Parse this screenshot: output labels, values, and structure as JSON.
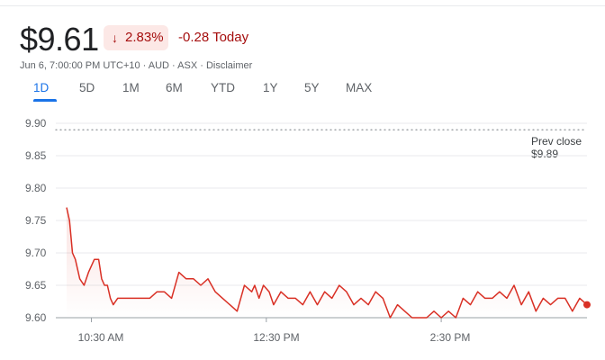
{
  "quote": {
    "price": "$9.61",
    "change_percent": "2.83%",
    "change_arrow_icon": "arrow-down-icon",
    "change_today": "-0.28 Today",
    "meta": "Jun 6, 7:00:00 PM UTC+10 · AUD · ASX · Disclaimer"
  },
  "ranges": [
    "1D",
    "5D",
    "1M",
    "6M",
    "YTD",
    "1Y",
    "5Y",
    "MAX"
  ],
  "selected_range": "1D",
  "colors": {
    "down": "#d93025",
    "down_text": "#a50e0e",
    "badge_bg": "#fce8e6",
    "accent": "#1a73e8"
  },
  "previous_close": {
    "label": "Prev close",
    "value": "$9.89"
  },
  "chart_data": {
    "type": "line",
    "y_ticks": [
      "9.90",
      "9.85",
      "9.80",
      "9.75",
      "9.70",
      "9.65",
      "9.60"
    ],
    "x_ticks": [
      "10:30 AM",
      "12:30 PM",
      "2:30 PM"
    ],
    "ylim": [
      9.6,
      9.9
    ],
    "prev_close": 9.89,
    "grid": true,
    "series": [
      {
        "x": [
          "10:13",
          "10:15",
          "10:17",
          "10:19",
          "10:22",
          "10:25",
          "10:28",
          "10:32",
          "10:35",
          "10:37",
          "10:39",
          "10:41",
          "10:43",
          "10:45",
          "10:48",
          "10:52",
          "10:55",
          "11:00",
          "11:05",
          "11:10",
          "11:15",
          "11:20",
          "11:25",
          "11:30",
          "11:35",
          "11:40",
          "11:45",
          "11:50",
          "11:55",
          "12:00",
          "12:05",
          "12:10",
          "12:15",
          "12:20",
          "12:22",
          "12:25",
          "12:28",
          "12:32",
          "12:35",
          "12:40",
          "12:45",
          "12:50",
          "12:55",
          "13:00",
          "13:05",
          "13:10",
          "13:15",
          "13:20",
          "13:25",
          "13:30",
          "13:35",
          "13:40",
          "13:45",
          "13:50",
          "13:55",
          "14:00",
          "14:05",
          "14:10",
          "14:15",
          "14:20",
          "14:25",
          "14:30",
          "14:35",
          "14:40",
          "14:45",
          "14:50",
          "14:55",
          "15:00",
          "15:05",
          "15:10",
          "15:15",
          "15:20",
          "15:25",
          "15:30",
          "15:35",
          "15:40",
          "15:45",
          "15:50",
          "15:55",
          "16:00",
          "16:05",
          "16:10"
        ],
        "y": [
          9.77,
          9.75,
          9.7,
          9.69,
          9.66,
          9.65,
          9.67,
          9.69,
          9.69,
          9.66,
          9.65,
          9.65,
          9.63,
          9.62,
          9.63,
          9.63,
          9.63,
          9.63,
          9.63,
          9.63,
          9.64,
          9.64,
          9.63,
          9.67,
          9.66,
          9.66,
          9.65,
          9.66,
          9.64,
          9.63,
          9.62,
          9.61,
          9.65,
          9.64,
          9.65,
          9.63,
          9.65,
          9.64,
          9.62,
          9.64,
          9.63,
          9.63,
          9.62,
          9.64,
          9.62,
          9.64,
          9.63,
          9.65,
          9.64,
          9.62,
          9.63,
          9.62,
          9.64,
          9.63,
          9.6,
          9.62,
          9.61,
          9.6,
          9.6,
          9.6,
          9.61,
          9.6,
          9.61,
          9.6,
          9.63,
          9.62,
          9.64,
          9.63,
          9.63,
          9.64,
          9.63,
          9.65,
          9.62,
          9.64,
          9.61,
          9.63,
          9.62,
          9.63,
          9.63,
          9.61,
          9.63,
          9.62
        ]
      }
    ]
  }
}
